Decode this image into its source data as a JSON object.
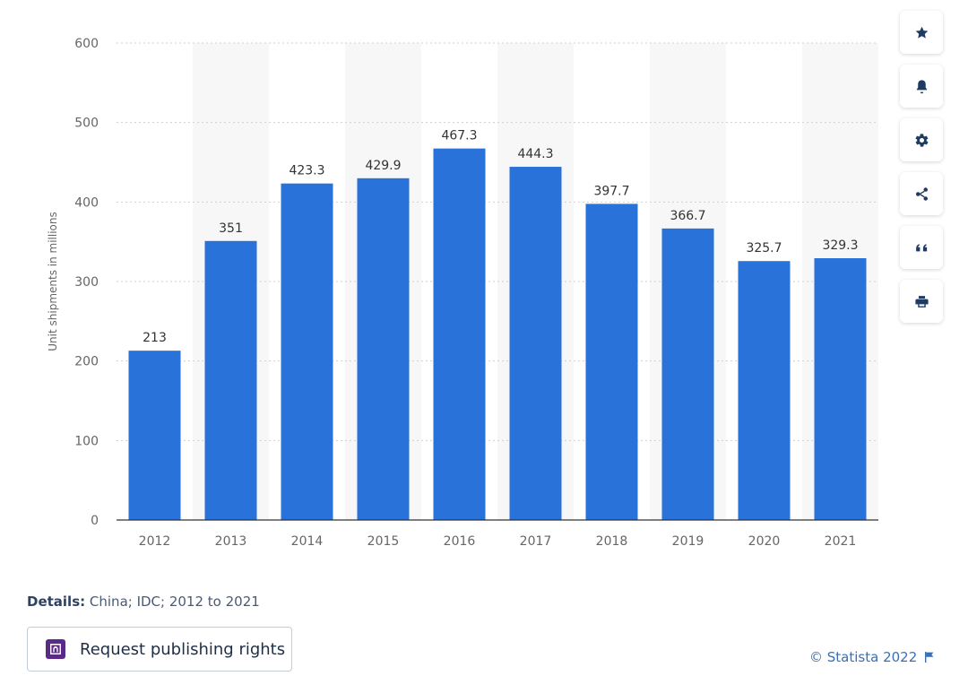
{
  "chart_data": {
    "type": "bar",
    "categories": [
      "2012",
      "2013",
      "2014",
      "2015",
      "2016",
      "2017",
      "2018",
      "2019",
      "2020",
      "2021"
    ],
    "values": [
      213,
      351,
      423.3,
      429.9,
      467.3,
      444.3,
      397.7,
      366.7,
      325.7,
      329.3
    ],
    "data_labels": [
      "213",
      "351",
      "423.3",
      "429.9",
      "467.3",
      "444.3",
      "397.7",
      "366.7",
      "325.7",
      "329.3"
    ],
    "title": "",
    "xlabel": "",
    "ylabel": "Unit shipments in millions",
    "ylim": [
      0,
      600
    ],
    "yticks": [
      0,
      100,
      200,
      300,
      400,
      500,
      600
    ],
    "grid": true,
    "legend": "none",
    "bar_color": "#2872d9",
    "column_band_color": "#f7f7f7"
  },
  "toolbar": {
    "items": [
      {
        "icon": "star-icon",
        "name": "favorite"
      },
      {
        "icon": "bell-icon",
        "name": "notification"
      },
      {
        "icon": "gear-icon",
        "name": "settings"
      },
      {
        "icon": "share-icon",
        "name": "share"
      },
      {
        "icon": "quote-icon",
        "name": "citation"
      },
      {
        "icon": "print-icon",
        "name": "print"
      }
    ]
  },
  "footer": {
    "details_label": "Details:",
    "details_text": " China; IDC; 2012 to 2021",
    "publish_button_label": "Request publishing rights",
    "publish_icon": "publishing-icon",
    "copyright_text": "© Statista 2022",
    "flag_icon": "flag-icon"
  },
  "colors": {
    "accent": "#2872d9",
    "link": "#3a6fb8",
    "toolbar_icon": "#1f3b63"
  }
}
